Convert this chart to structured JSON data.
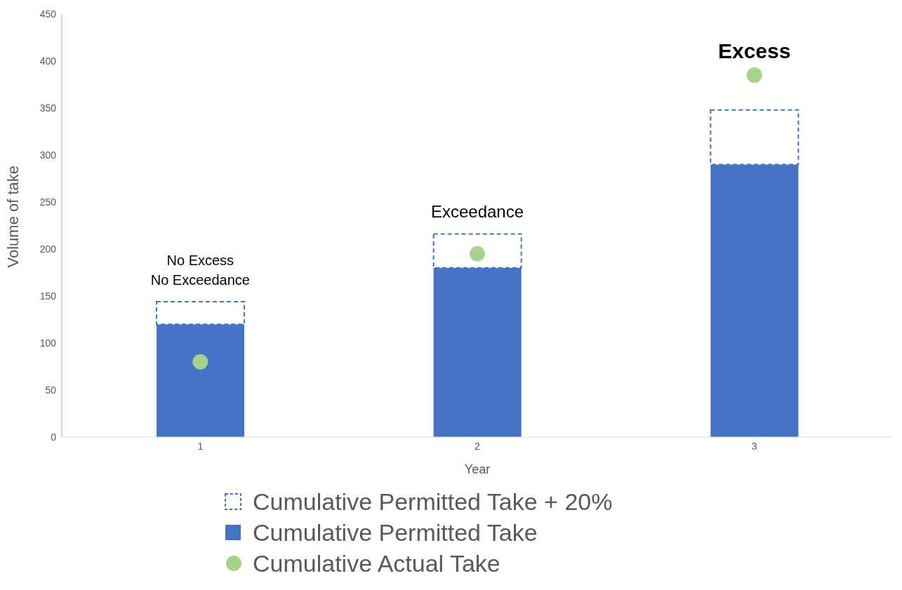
{
  "chart_data": {
    "type": "bar",
    "stacked": true,
    "xlabel": "Year",
    "ylabel": "Volume of take",
    "categories": [
      "1",
      "2",
      "3"
    ],
    "series": [
      {
        "name": "Cumulative Permitted Take",
        "color": "#4472c4",
        "values": [
          120,
          180,
          290
        ]
      },
      {
        "name": "Cumulative Permitted Take + 20%",
        "color": "#4472c4",
        "line_style": "dashed",
        "values": [
          24,
          36,
          58
        ]
      },
      {
        "name": "Cumulative Actual Take",
        "type": "scatter",
        "marker": "circle",
        "color": "#a9d18e",
        "x": [
          "1",
          "2",
          "3"
        ],
        "values": [
          80,
          195,
          385
        ]
      }
    ],
    "ylim": [
      0,
      450
    ],
    "yticks": [
      0,
      50,
      100,
      150,
      200,
      250,
      300,
      350,
      400,
      450
    ],
    "grid": false,
    "legend": "bottom",
    "annotations": [
      "No Excess\nNo Exceedance",
      "Exceedance",
      "Excess"
    ]
  }
}
